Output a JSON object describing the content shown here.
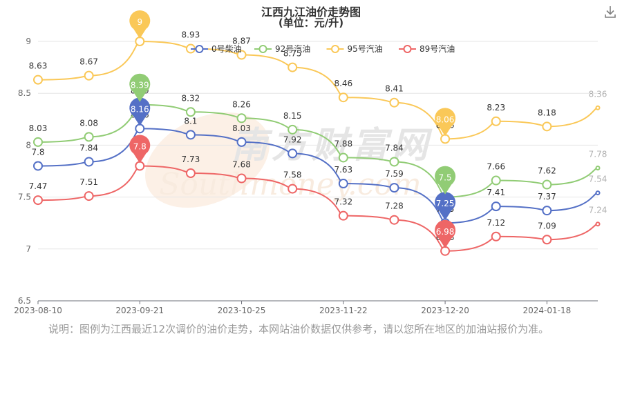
{
  "title": "江西九江油价走势图",
  "subtitle": "(单位：元/升)",
  "note": "说明：图例为江西最近12次调价的油价走势，本网站油价数据仅供参考，请以您所在地区的加油站报价为准。",
  "watermark": "南方财富网",
  "watermark_latin": "Southmoney.com",
  "download_icon": "download-icon",
  "chart_data": {
    "type": "line",
    "x": [
      "2023-08-10",
      "2023-08-24",
      "2023-09-21",
      "2023-10-11",
      "2023-10-25",
      "2023-11-08",
      "2023-11-22",
      "2023-12-06",
      "2023-12-20",
      "2024-01-04",
      "2024-01-18",
      "2024-02-01"
    ],
    "xticks": [
      "2023-08-10",
      "2023-09-21",
      "2023-10-25",
      "2023-11-22",
      "2023-12-20",
      "2024-01-18"
    ],
    "ylim": [
      6.5,
      9.0
    ],
    "yticks": [
      "6.5",
      "7",
      "7.5",
      "8",
      "8.5",
      "9"
    ],
    "legend": "top",
    "series": [
      {
        "name": "0号柴油",
        "color": "#5470c6",
        "values": [
          7.8,
          7.84,
          8.16,
          8.1,
          8.03,
          7.92,
          7.63,
          7.59,
          7.25,
          7.41,
          7.37,
          7.54
        ],
        "max": 8.16,
        "min": 7.25
      },
      {
        "name": "92号汽油",
        "color": "#91cc75",
        "values": [
          8.03,
          8.08,
          8.39,
          8.32,
          8.26,
          8.15,
          7.88,
          7.84,
          7.5,
          7.66,
          7.62,
          7.78
        ],
        "max": 8.39,
        "min": 7.5
      },
      {
        "name": "95号汽油",
        "color": "#fac858",
        "values": [
          8.63,
          8.67,
          9,
          8.93,
          8.87,
          8.75,
          8.46,
          8.41,
          8.06,
          8.23,
          8.18,
          8.36
        ],
        "max": 9,
        "min": 8.06
      },
      {
        "name": "89号汽油",
        "color": "#ee6666",
        "values": [
          7.47,
          7.51,
          7.8,
          7.73,
          7.68,
          7.58,
          7.32,
          7.28,
          6.98,
          7.12,
          7.09,
          7.24
        ],
        "max": 7.8,
        "min": 6.98
      }
    ]
  }
}
